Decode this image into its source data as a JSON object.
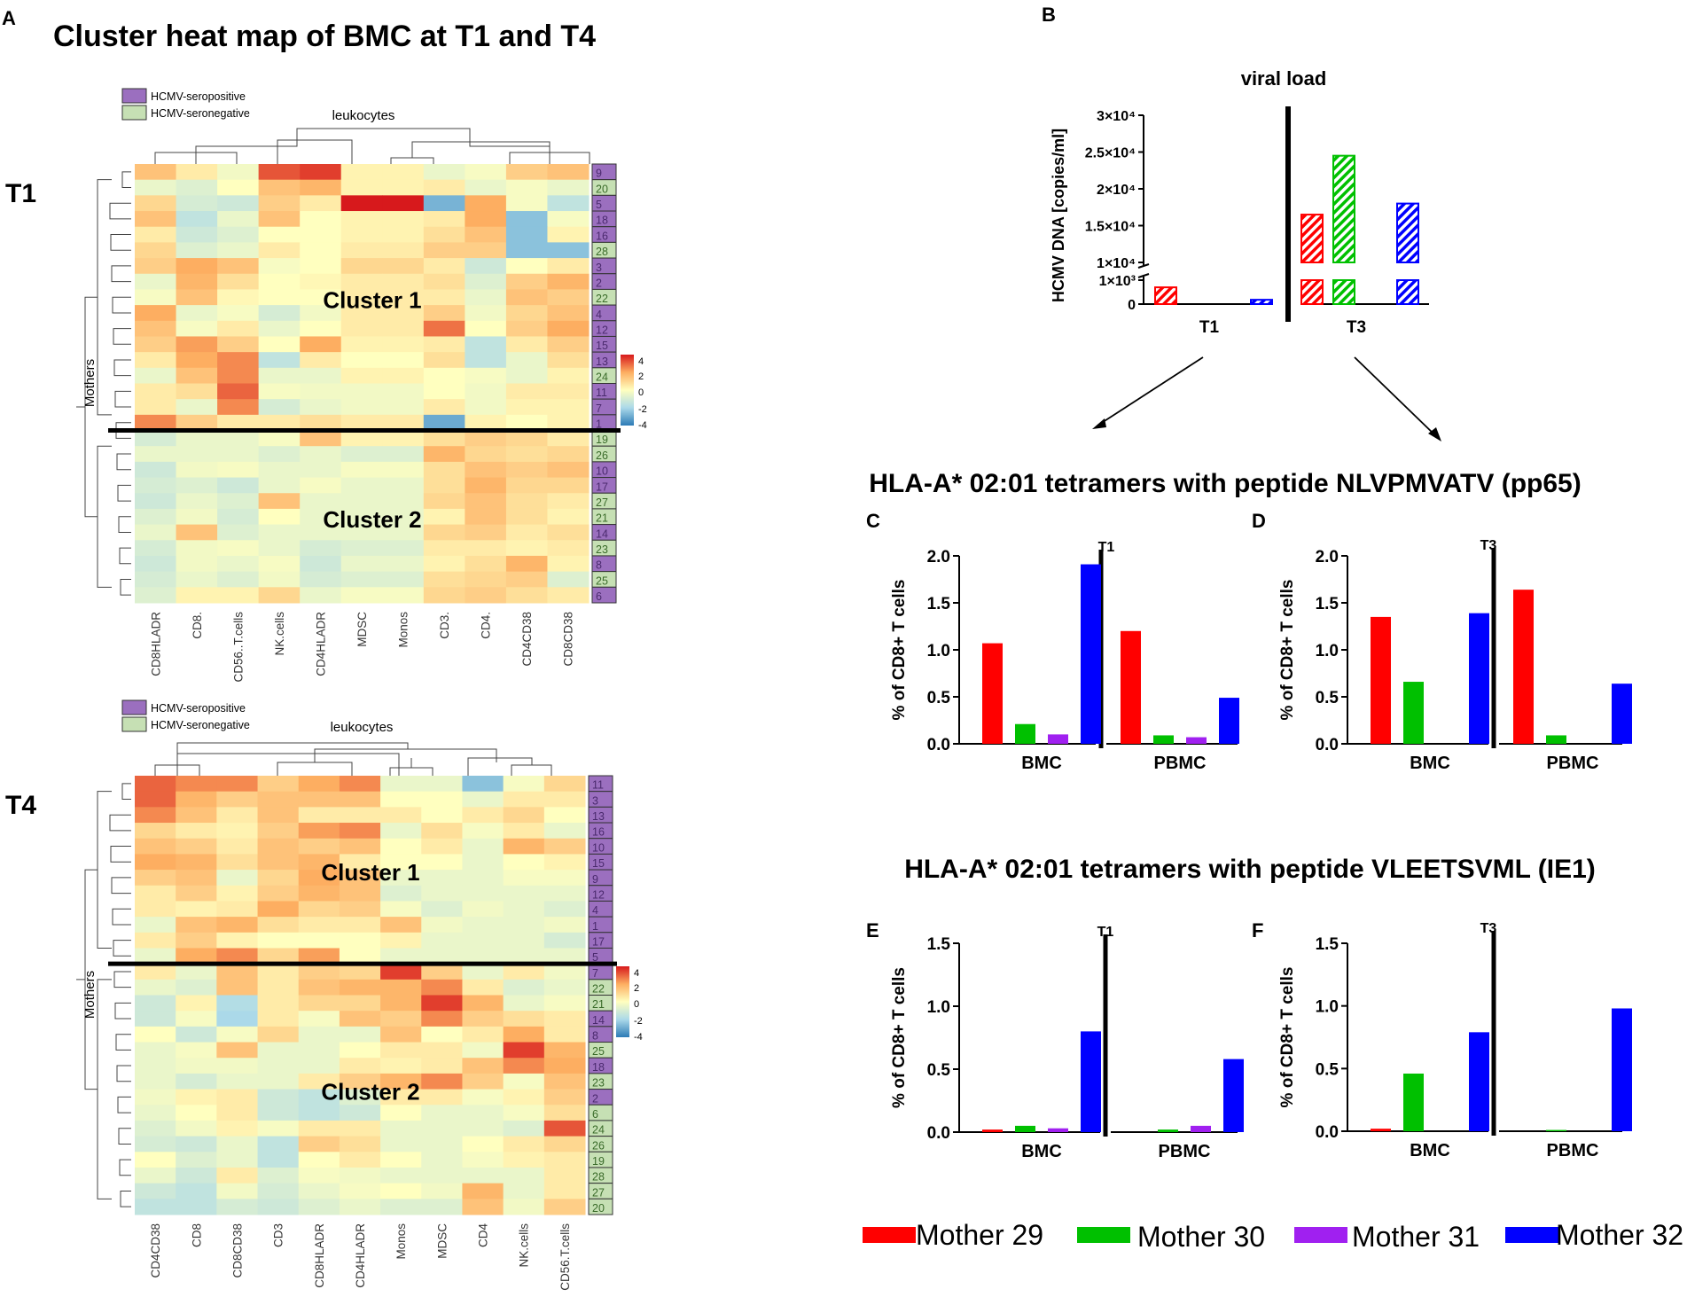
{
  "panels": {
    "a_label": "A",
    "b_label": "B",
    "c_label": "C",
    "d_label": "D",
    "e_label": "E",
    "f_label": "F"
  },
  "heatmap_section": {
    "title": "Cluster heat map of BMC at T1 and T4",
    "row_side_label": "Mothers",
    "column_group_label": "leukocytes",
    "legend": {
      "seropositive": "HCMV-seropositive",
      "seronegative": "HCMV-seronegative",
      "seropositive_color": "#9b6fbf",
      "seronegative_color": "#c6e0b4"
    },
    "scale_ticks": [
      "4",
      "2",
      "0",
      "-2",
      "-4"
    ],
    "palette": [
      "#2c7bb6",
      "#abd9e9",
      "#ffffbf",
      "#fdae61",
      "#d7191c"
    ]
  },
  "chart_data": [
    {
      "type": "heatmap",
      "timepoint": "T1",
      "columns": [
        "CD8HLADR",
        "CD8.",
        "CD56..T.cells",
        "NK.cells",
        "CD4HLADR",
        "MDSC",
        "Monos",
        "CD3.",
        "CD4.",
        "CD4CD38",
        "CD8CD38"
      ],
      "rows": [
        "9",
        "20",
        "5",
        "18",
        "16",
        "28",
        "3",
        "2",
        "22",
        "4",
        "12",
        "15",
        "13",
        "24",
        "11",
        "7",
        "1",
        "19",
        "26",
        "10",
        "17",
        "27",
        "21",
        "14",
        "23",
        "8",
        "25",
        "6"
      ],
      "row_status": [
        "pos",
        "neg",
        "pos",
        "pos",
        "pos",
        "neg",
        "pos",
        "pos",
        "neg",
        "pos",
        "pos",
        "pos",
        "pos",
        "neg",
        "pos",
        "pos",
        "pos",
        "neg",
        "neg",
        "pos",
        "pos",
        "neg",
        "neg",
        "pos",
        "neg",
        "pos",
        "neg",
        "pos"
      ],
      "values": [
        [
          1.5,
          0.5,
          -0.3,
          3.2,
          3.5,
          0.3,
          0.3,
          -0.5,
          -0.2,
          1.2,
          1.5
        ],
        [
          -0.5,
          -0.8,
          0,
          1.5,
          1.8,
          0.3,
          0.3,
          0.5,
          -0.5,
          -0.2,
          -0.5
        ],
        [
          1,
          -1,
          -1.2,
          1.2,
          0.5,
          4,
          4,
          -2.8,
          2,
          -0.2,
          -1.5
        ],
        [
          1.5,
          -1.5,
          -0.5,
          1.5,
          0,
          0.3,
          0.3,
          0.5,
          2,
          -2.5,
          -0.2
        ],
        [
          0.5,
          -1.2,
          -0.8,
          0,
          0,
          0.3,
          0.3,
          0.8,
          1.5,
          -2.5,
          0.3
        ],
        [
          1,
          -0.8,
          -0.5,
          0.5,
          0,
          0.5,
          0.5,
          1.2,
          1.2,
          -2.5,
          -2.5
        ],
        [
          1.2,
          2,
          1.5,
          -0.2,
          0,
          1,
          1,
          0.5,
          -1.2,
          0,
          0.5
        ],
        [
          -0.5,
          1.8,
          0.8,
          0,
          0.2,
          0.5,
          0.5,
          0.8,
          -0.8,
          1.2,
          1.8
        ],
        [
          -0.2,
          1.5,
          0.2,
          0,
          0,
          0.5,
          0.5,
          0.5,
          -0.5,
          1.5,
          1.2
        ],
        [
          2,
          -0.5,
          -0.2,
          -1,
          -0.3,
          0.5,
          0.5,
          1.2,
          -0.3,
          1,
          1.5
        ],
        [
          1.5,
          -0.2,
          0.5,
          -0.5,
          0,
          0.5,
          0.5,
          2.8,
          0,
          1.2,
          2
        ],
        [
          1.2,
          2.2,
          1.2,
          0,
          2,
          0.3,
          0.3,
          0.5,
          -1.5,
          0.5,
          1.2
        ],
        [
          0.5,
          2,
          2.5,
          -1.5,
          0.5,
          0,
          0,
          0.8,
          -1.5,
          -0.5,
          0.8
        ],
        [
          -0.5,
          1.5,
          2.5,
          -0.5,
          -0.5,
          0.3,
          0.3,
          0,
          -0.2,
          -0.5,
          0.3
        ],
        [
          0.5,
          0.8,
          3,
          -0.2,
          -0.3,
          -0.3,
          -0.3,
          0,
          -0.3,
          0.5,
          0.5
        ],
        [
          0.5,
          -0.5,
          2.5,
          -1,
          -0.5,
          -0.3,
          -0.3,
          0.5,
          -0.3,
          0.3,
          0.3
        ],
        [
          2.5,
          1.2,
          0.5,
          0.5,
          0.8,
          0.5,
          0.5,
          -3,
          0.3,
          0,
          0.3
        ],
        [
          -1,
          -0.5,
          -0.5,
          -0.2,
          1.5,
          0.3,
          0.3,
          0.8,
          1.2,
          1,
          0.5
        ],
        [
          -0.5,
          -0.5,
          -0.5,
          -0.8,
          -0.5,
          -0.8,
          -0.8,
          1.8,
          1,
          0.8,
          1
        ],
        [
          -1.2,
          -0.3,
          -0.2,
          -0.5,
          -0.5,
          -0.2,
          -0.2,
          0.8,
          1.5,
          1.2,
          1.5
        ],
        [
          -1,
          -0.8,
          -1.2,
          -0.5,
          -0.2,
          -0.5,
          -0.5,
          0.8,
          1.8,
          1,
          1
        ],
        [
          -1.2,
          -0.5,
          -0.8,
          1.5,
          -0.5,
          -0.5,
          -0.5,
          1,
          1.5,
          0.8,
          0.5
        ],
        [
          -0.8,
          -0.3,
          -1,
          0,
          -0.5,
          -0.5,
          -0.5,
          0.3,
          1.5,
          0.8,
          0.3
        ],
        [
          -0.5,
          1.5,
          -0.8,
          -0.5,
          -0.5,
          -0.5,
          -0.5,
          1,
          1.2,
          0.5,
          0.8
        ],
        [
          -1,
          -0.3,
          -0.2,
          -0.5,
          -1,
          -0.8,
          -0.8,
          0.5,
          0.5,
          0.3,
          0.5
        ],
        [
          -1.2,
          -0.3,
          -0.5,
          -0.2,
          -1.2,
          -0.5,
          -0.5,
          0.3,
          0.8,
          1.8,
          0.3
        ],
        [
          -1,
          -0.5,
          -0.8,
          -0.3,
          -1,
          -0.8,
          -0.8,
          0.8,
          1,
          1.2,
          -0.8
        ],
        [
          -0.8,
          0.3,
          0.3,
          1,
          -0.5,
          -0.2,
          -0.2,
          1,
          1.2,
          0.8,
          0.5
        ]
      ],
      "cluster_labels": [
        "Cluster 1",
        "Cluster 2"
      ],
      "cluster_split_after_row": 17,
      "scale_range": [
        -4,
        4
      ]
    },
    {
      "type": "heatmap",
      "timepoint": "T4",
      "columns": [
        "CD4CD38",
        "CD8",
        "CD8CD38",
        "CD3",
        "CD8HLADR",
        "CD4HLADR",
        "Monos",
        "MDSC",
        "CD4",
        "NK.cells",
        "CD56.T.cells"
      ],
      "rows": [
        "11",
        "3",
        "13",
        "16",
        "10",
        "15",
        "9",
        "12",
        "4",
        "1",
        "17",
        "5",
        "7",
        "22",
        "21",
        "14",
        "8",
        "25",
        "18",
        "23",
        "2",
        "6",
        "24",
        "26",
        "19",
        "28",
        "27",
        "20"
      ],
      "row_status": [
        "pos",
        "pos",
        "pos",
        "pos",
        "pos",
        "pos",
        "pos",
        "pos",
        "pos",
        "pos",
        "pos",
        "pos",
        "pos",
        "neg",
        "neg",
        "pos",
        "pos",
        "neg",
        "pos",
        "neg",
        "pos",
        "neg",
        "neg",
        "neg",
        "neg",
        "neg",
        "neg",
        "neg"
      ],
      "values": [
        [
          3,
          2.5,
          2.5,
          1.2,
          2,
          2.5,
          -0.5,
          -0.5,
          -2.5,
          -0.2,
          1
        ],
        [
          3,
          1.8,
          1.2,
          1.5,
          1.5,
          1.5,
          0,
          0,
          -0.5,
          0.5,
          0.5
        ],
        [
          2.5,
          1.5,
          0.5,
          1.5,
          0.5,
          0.5,
          0.5,
          0,
          0.5,
          1,
          0
        ],
        [
          1,
          0.5,
          0.3,
          1.2,
          2.2,
          2.5,
          -0.5,
          0.8,
          -0.2,
          0.5,
          -0.5
        ],
        [
          1.5,
          1.2,
          0.5,
          1.5,
          1.2,
          1.5,
          0,
          0.5,
          -0.5,
          1.8,
          1.2
        ],
        [
          2,
          1.8,
          0.8,
          1.5,
          1.8,
          0.5,
          0,
          0,
          -0.5,
          0,
          0.3
        ],
        [
          1.2,
          1.5,
          -0.5,
          1,
          2,
          1.5,
          -0.5,
          -0.5,
          -0.5,
          -0.2,
          -0.2
        ],
        [
          0.5,
          1.2,
          0.3,
          1.2,
          1.8,
          1.5,
          -0.8,
          -0.5,
          -0.5,
          -0.5,
          -0.5
        ],
        [
          0.5,
          0.3,
          0.5,
          2,
          1,
          1.2,
          -0.2,
          -0.8,
          -0.3,
          -0.5,
          -0.8
        ],
        [
          -0.5,
          1.5,
          1.8,
          0.8,
          0.5,
          0.5,
          1.5,
          -0.3,
          -0.5,
          -0.5,
          -0.3
        ],
        [
          0.5,
          1.2,
          0.3,
          0,
          0,
          0,
          0.3,
          -0.5,
          -0.5,
          -0.5,
          -1
        ],
        [
          -0.5,
          2,
          2.5,
          1,
          2.2,
          0,
          -0.5,
          -0.5,
          -0.5,
          -0.5,
          -0.5
        ],
        [
          0.5,
          -0.5,
          1.5,
          0.5,
          1.2,
          1,
          3.5,
          1.2,
          -0.5,
          0.5,
          -0.3
        ],
        [
          -0.5,
          -0.8,
          1.5,
          0.5,
          1.5,
          1.8,
          1.8,
          2.5,
          0.5,
          -0.8,
          -0.5
        ],
        [
          -1.2,
          0.3,
          -1.8,
          0.5,
          1,
          1,
          1.8,
          3.5,
          1.8,
          -0.5,
          -0.2
        ],
        [
          -1.2,
          -0.2,
          -2,
          0.5,
          -0.2,
          1.5,
          1.2,
          2.5,
          1.2,
          0.8,
          0.5
        ],
        [
          0,
          -1.2,
          -0.2,
          1,
          -0.5,
          -0.5,
          1.5,
          0,
          0.5,
          2,
          0.5
        ],
        [
          -0.5,
          -0.2,
          1.5,
          -0.5,
          -0.5,
          0,
          0.5,
          0.5,
          -0.3,
          3.5,
          1.8
        ],
        [
          -0.5,
          -0.3,
          -0.3,
          -0.5,
          -0.5,
          0.5,
          0.3,
          0.5,
          1.5,
          2.5,
          2
        ],
        [
          -0.5,
          -1,
          -0.5,
          -0.5,
          0.5,
          1.2,
          1.8,
          2.5,
          1.2,
          -0.2,
          1.5
        ],
        [
          -0.3,
          0.3,
          0.5,
          -1.2,
          -1.5,
          -0.8,
          0.5,
          0.5,
          -0.2,
          0.3,
          1.2
        ],
        [
          -0.5,
          0,
          0.5,
          -1.2,
          -1.5,
          -1.2,
          0,
          -0.5,
          -0.5,
          -0.2,
          0.8
        ],
        [
          -0.8,
          -0.3,
          0.3,
          -0.2,
          0.5,
          0.5,
          -0.5,
          -0.5,
          -0.5,
          -0.8,
          3.2
        ],
        [
          -1,
          -1.2,
          -0.5,
          -1.5,
          1.2,
          0.8,
          -0.5,
          -0.5,
          0,
          0.5,
          1
        ],
        [
          0,
          -0.8,
          -0.5,
          -1.5,
          0,
          0.5,
          0,
          -0.5,
          -0.2,
          0.3,
          0.5
        ],
        [
          -0.5,
          -1.2,
          0.5,
          -0.8,
          -0.2,
          -0.3,
          -0.5,
          -0.5,
          -0.5,
          -0.5,
          0.5
        ],
        [
          -1.2,
          -1.5,
          -0.3,
          -1,
          -0.5,
          -0.2,
          0,
          -0.3,
          1.8,
          -0.5,
          0.5
        ],
        [
          -1.5,
          -1.5,
          -1,
          -1.2,
          -0.8,
          -0.5,
          -0.8,
          -0.8,
          1.5,
          -0.3,
          1.2
        ]
      ],
      "cluster_labels": [
        "Cluster 1",
        "Cluster 2"
      ],
      "cluster_split_after_row": 12,
      "scale_range": [
        -4,
        4
      ]
    },
    {
      "type": "bar",
      "id": "B",
      "title": "viral load",
      "ylabel": "HCMV DNA [copies/ml]",
      "categories": [
        "T1",
        "T3"
      ],
      "axis_ticks_low": [
        "0",
        "1×10³"
      ],
      "axis_ticks_high": [
        "1×10⁴",
        "1.5×10⁴",
        "2×10⁴",
        "2.5×10⁴",
        "3×10⁴"
      ],
      "axis_break": true,
      "hatched": true,
      "series": [
        {
          "name": "Mother 29",
          "color": "#ff0000",
          "values": [
            700,
            16500
          ]
        },
        {
          "name": "Mother 30",
          "color": "#00c000",
          "values": [
            0,
            24500
          ]
        },
        {
          "name": "Mother 31",
          "color": "#a020f0",
          "values": [
            0,
            0
          ]
        },
        {
          "name": "Mother 32",
          "color": "#0000ff",
          "values": [
            180,
            18000
          ]
        }
      ]
    },
    {
      "type": "bar",
      "id": "C",
      "group_title": "HLA-A* 02:01 tetramers with peptide NLVPMVATV (pp65)",
      "timepoint": "T1",
      "ylabel": "% of CD8+ T cells",
      "categories": [
        "BMC",
        "PBMC"
      ],
      "ylim": [
        0,
        2.0
      ],
      "yticks": [
        "0.0",
        "0.5",
        "1.0",
        "1.5",
        "2.0"
      ],
      "series": [
        {
          "name": "Mother 29",
          "values": [
            1.07,
            1.2
          ]
        },
        {
          "name": "Mother 30",
          "values": [
            0.21,
            0.09
          ]
        },
        {
          "name": "Mother 31",
          "values": [
            0.1,
            0.07
          ]
        },
        {
          "name": "Mother 32",
          "values": [
            1.91,
            0.49
          ]
        }
      ]
    },
    {
      "type": "bar",
      "id": "D",
      "timepoint": "T3",
      "ylabel": "% of CD8+ T cells",
      "categories": [
        "BMC",
        "PBMC"
      ],
      "ylim": [
        0,
        2.0
      ],
      "yticks": [
        "0.0",
        "0.5",
        "1.0",
        "1.5",
        "2.0"
      ],
      "series": [
        {
          "name": "Mother 29",
          "values": [
            1.35,
            1.64
          ]
        },
        {
          "name": "Mother 30",
          "values": [
            0.66,
            0.09
          ]
        },
        {
          "name": "Mother 31",
          "values": [
            0,
            0
          ]
        },
        {
          "name": "Mother 32",
          "values": [
            1.39,
            0.64
          ]
        }
      ]
    },
    {
      "type": "bar",
      "id": "E",
      "group_title": "HLA-A* 02:01 tetramers with peptide VLEETSVML (IE1)",
      "timepoint": "T1",
      "ylabel": "% of CD8+ T cells",
      "categories": [
        "BMC",
        "PBMC"
      ],
      "ylim": [
        0,
        1.5
      ],
      "yticks": [
        "0.0",
        "0.5",
        "1.0",
        "1.5"
      ],
      "series": [
        {
          "name": "Mother 29",
          "values": [
            0.02,
            0
          ]
        },
        {
          "name": "Mother 30",
          "values": [
            0.05,
            0.02
          ]
        },
        {
          "name": "Mother 31",
          "values": [
            0.03,
            0.05
          ]
        },
        {
          "name": "Mother 32",
          "values": [
            0.8,
            0.58
          ]
        }
      ]
    },
    {
      "type": "bar",
      "id": "F",
      "timepoint": "T3",
      "ylabel": "% of CD8+ T cells",
      "categories": [
        "BMC",
        "PBMC"
      ],
      "ylim": [
        0,
        1.5
      ],
      "yticks": [
        "0.0",
        "0.5",
        "1.0",
        "1.5"
      ],
      "series": [
        {
          "name": "Mother 29",
          "values": [
            0.02,
            0
          ]
        },
        {
          "name": "Mother 30",
          "values": [
            0.46,
            0.01
          ]
        },
        {
          "name": "Mother 31",
          "values": [
            0,
            0
          ]
        },
        {
          "name": "Mother 32",
          "values": [
            0.79,
            0.98
          ]
        }
      ]
    }
  ],
  "legend": [
    {
      "name": "Mother 29",
      "color": "#ff0000"
    },
    {
      "name": "Mother 30",
      "color": "#00c000"
    },
    {
      "name": "Mother 31",
      "color": "#a020f0"
    },
    {
      "name": "Mother 32",
      "color": "#0000ff"
    }
  ]
}
